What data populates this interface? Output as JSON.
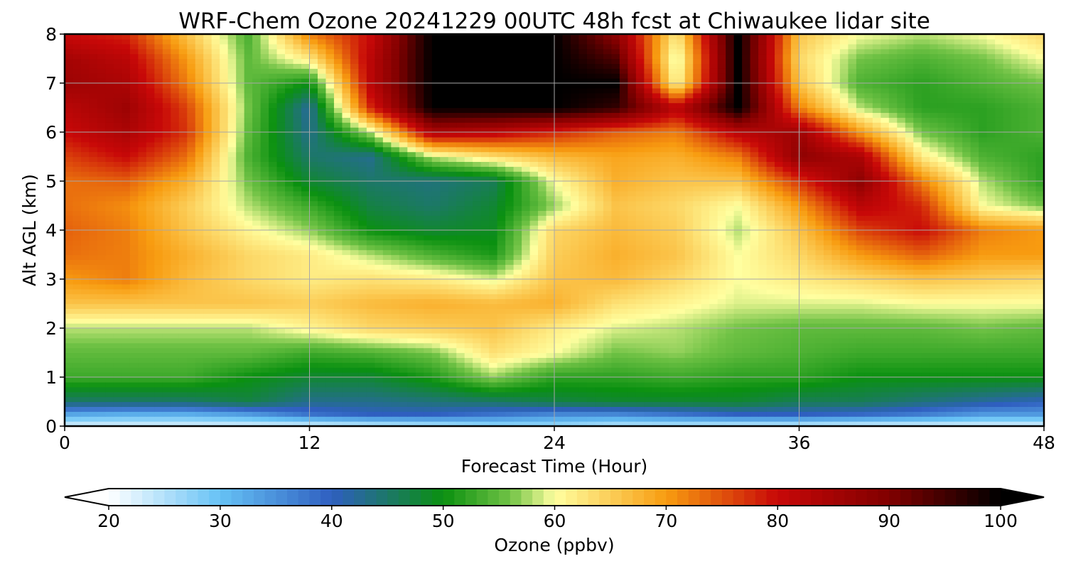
{
  "chart_data": {
    "type": "heatmap",
    "title": "WRF-Chem Ozone  20241229 00UTC 48h fcst at Chiwaukee lidar site",
    "xlabel": "Forecast Time (Hour)",
    "ylabel": "Alt AGL (km)",
    "xlim": [
      0,
      48
    ],
    "ylim": [
      0,
      8
    ],
    "xticks": [
      "0",
      "12",
      "24",
      "36",
      "48"
    ],
    "yticks": [
      "0",
      "1",
      "2",
      "3",
      "4",
      "5",
      "6",
      "7",
      "8"
    ],
    "grid": true,
    "colorbar": {
      "label": "Ozone  (ppbv)",
      "range": [
        20,
        100
      ],
      "ticks": [
        "20",
        "30",
        "40",
        "50",
        "60",
        "70",
        "80",
        "90",
        "100"
      ],
      "extend": "both",
      "stops": [
        {
          "v": 20,
          "c": "#ffffff"
        },
        {
          "v": 30,
          "c": "#66c2f5"
        },
        {
          "v": 40,
          "c": "#2f5fc0"
        },
        {
          "v": 50,
          "c": "#0a9010"
        },
        {
          "v": 56,
          "c": "#70c245"
        },
        {
          "v": 60,
          "c": "#ffffa0"
        },
        {
          "v": 70,
          "c": "#f89c10"
        },
        {
          "v": 80,
          "c": "#c80808"
        },
        {
          "v": 90,
          "c": "#800000"
        },
        {
          "v": 100,
          "c": "#000000"
        }
      ]
    },
    "x": [
      0,
      3,
      6,
      9,
      12,
      15,
      18,
      21,
      24,
      27,
      30,
      33,
      36,
      39,
      42,
      45,
      48
    ],
    "y": [
      0,
      0.25,
      0.5,
      1,
      1.5,
      2,
      2.5,
      3,
      3.5,
      4,
      4.5,
      5,
      5.5,
      6,
      6.5,
      7,
      7.5,
      8
    ],
    "z": [
      [
        22,
        22,
        22,
        22,
        22,
        23,
        24,
        26,
        26,
        24,
        24,
        23,
        23,
        22,
        22,
        22,
        22
      ],
      [
        33,
        32,
        32,
        34,
        38,
        40,
        40,
        38,
        36,
        36,
        38,
        40,
        40,
        39,
        37,
        34,
        34
      ],
      [
        45,
        45,
        45,
        47,
        43,
        43,
        44,
        45,
        47,
        48,
        48,
        48,
        46,
        46,
        44,
        42,
        40
      ],
      [
        53,
        53,
        53,
        50,
        48,
        48,
        51,
        57,
        52,
        52,
        53,
        52,
        52,
        50,
        50,
        50,
        50
      ],
      [
        55,
        55,
        55,
        55,
        53,
        54,
        56,
        63,
        60,
        56,
        57,
        55,
        54,
        53,
        53,
        53,
        53
      ],
      [
        58,
        58,
        58,
        58,
        61,
        64,
        65,
        66,
        62,
        59,
        58,
        56,
        55,
        55,
        55,
        56,
        55
      ],
      [
        66,
        66,
        66,
        66,
        65,
        67,
        68,
        67,
        68,
        63,
        61,
        59,
        59,
        59,
        60,
        60,
        60
      ],
      [
        70,
        72,
        67,
        64,
        62,
        63,
        62,
        59,
        66,
        67,
        64,
        60,
        62,
        64,
        66,
        65,
        64
      ],
      [
        73,
        72,
        68,
        64,
        62,
        58,
        54,
        51,
        65,
        68,
        66,
        60,
        64,
        70,
        74,
        70,
        70
      ],
      [
        74,
        72,
        66,
        61,
        57,
        50,
        48,
        49,
        64,
        67,
        65,
        58,
        66,
        76,
        80,
        72,
        70
      ],
      [
        73,
        71,
        65,
        58,
        53,
        47,
        45,
        48,
        57,
        66,
        64,
        60,
        70,
        82,
        78,
        60,
        56
      ],
      [
        73,
        74,
        68,
        56,
        48,
        45,
        44,
        46,
        60,
        68,
        66,
        66,
        77,
        88,
        72,
        58,
        52
      ],
      [
        76,
        80,
        73,
        54,
        45,
        43,
        58,
        63,
        67,
        69,
        68,
        72,
        88,
        84,
        62,
        54,
        52
      ],
      [
        80,
        84,
        77,
        55,
        43,
        58,
        84,
        82,
        78,
        74,
        72,
        82,
        86,
        70,
        56,
        52,
        54
      ],
      [
        82,
        86,
        76,
        56,
        42,
        78,
        100,
        100,
        100,
        96,
        82,
        100,
        72,
        58,
        52,
        52,
        54
      ],
      [
        86,
        84,
        72,
        55,
        50,
        82,
        100,
        100,
        100,
        100,
        60,
        100,
        66,
        54,
        52,
        54,
        56
      ],
      [
        85,
        82,
        70,
        55,
        62,
        82,
        100,
        100,
        100,
        94,
        58,
        100,
        64,
        56,
        54,
        56,
        60
      ],
      [
        80,
        78,
        66,
        54,
        72,
        80,
        100,
        100,
        100,
        88,
        62,
        100,
        66,
        60,
        58,
        60,
        64
      ]
    ]
  }
}
